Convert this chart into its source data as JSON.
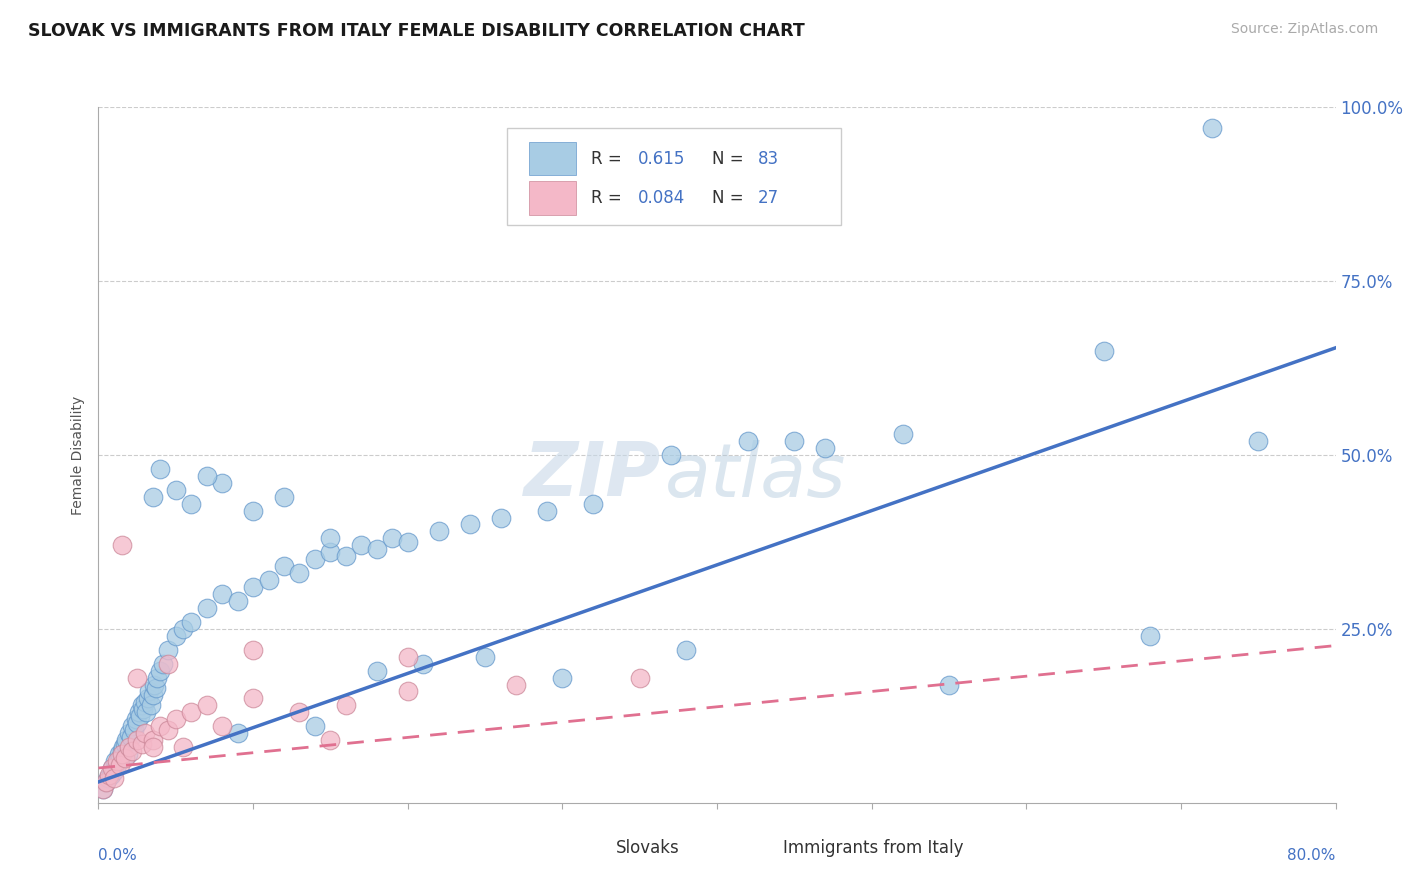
{
  "title": "SLOVAK VS IMMIGRANTS FROM ITALY FEMALE DISABILITY CORRELATION CHART",
  "source": "Source: ZipAtlas.com",
  "ylabel": "Female Disability",
  "xlim": [
    0.0,
    80.0
  ],
  "ylim": [
    0.0,
    100.0
  ],
  "yticks": [
    0.0,
    25.0,
    50.0,
    75.0,
    100.0
  ],
  "ytick_labels": [
    "",
    "25.0%",
    "50.0%",
    "75.0%",
    "100.0%"
  ],
  "blue_R": "0.615",
  "blue_N": "83",
  "pink_R": "0.084",
  "pink_N": "27",
  "blue_color": "#a8cce4",
  "pink_color": "#f4b8c8",
  "blue_line_color": "#4472c4",
  "pink_line_color": "#e07090",
  "blue_scatter_x": [
    0.3,
    0.5,
    0.6,
    0.8,
    0.9,
    1.0,
    1.1,
    1.2,
    1.3,
    1.4,
    1.5,
    1.6,
    1.7,
    1.8,
    1.9,
    2.0,
    2.1,
    2.2,
    2.3,
    2.4,
    2.5,
    2.6,
    2.7,
    2.8,
    2.9,
    3.0,
    3.1,
    3.2,
    3.3,
    3.4,
    3.5,
    3.6,
    3.7,
    3.8,
    4.0,
    4.2,
    4.5,
    5.0,
    5.5,
    6.0,
    7.0,
    8.0,
    9.0,
    10.0,
    11.0,
    12.0,
    13.0,
    14.0,
    15.0,
    16.0,
    17.0,
    18.0,
    19.0,
    20.0,
    22.0,
    24.0,
    26.0,
    29.0,
    32.0,
    37.0,
    42.0,
    47.0,
    52.0,
    65.0,
    72.0
  ],
  "blue_scatter_y": [
    2.0,
    3.0,
    3.5,
    4.0,
    5.0,
    4.5,
    6.0,
    5.5,
    7.0,
    6.5,
    7.5,
    8.0,
    8.5,
    9.0,
    7.0,
    10.0,
    9.5,
    11.0,
    10.5,
    12.0,
    11.5,
    13.0,
    12.5,
    14.0,
    13.5,
    14.5,
    13.0,
    15.0,
    16.0,
    14.0,
    15.5,
    17.0,
    16.5,
    18.0,
    19.0,
    20.0,
    22.0,
    24.0,
    25.0,
    26.0,
    28.0,
    30.0,
    29.0,
    31.0,
    32.0,
    34.0,
    33.0,
    35.0,
    36.0,
    35.5,
    37.0,
    36.5,
    38.0,
    37.5,
    39.0,
    40.0,
    41.0,
    42.0,
    43.0,
    50.0,
    52.0,
    51.0,
    53.0,
    65.0,
    97.0
  ],
  "blue_scatter_x2": [
    3.5,
    5.0,
    6.0,
    8.0,
    10.0,
    12.0,
    15.0,
    18.0,
    21.0,
    25.0,
    30.0,
    38.0,
    45.0,
    55.0,
    68.0,
    75.0,
    4.0,
    7.0,
    9.0,
    14.0
  ],
  "blue_scatter_y2": [
    44.0,
    45.0,
    43.0,
    46.0,
    42.0,
    44.0,
    38.0,
    19.0,
    20.0,
    21.0,
    18.0,
    22.0,
    52.0,
    17.0,
    24.0,
    52.0,
    48.0,
    47.0,
    10.0,
    11.0
  ],
  "pink_scatter_x": [
    0.3,
    0.5,
    0.7,
    0.9,
    1.0,
    1.2,
    1.4,
    1.5,
    1.7,
    2.0,
    2.2,
    2.5,
    2.8,
    3.0,
    3.5,
    4.0,
    4.5,
    5.0,
    6.0,
    7.0,
    8.0,
    10.0,
    13.0,
    16.0,
    20.0,
    27.0,
    35.0
  ],
  "pink_scatter_y": [
    2.0,
    3.0,
    4.0,
    5.0,
    3.5,
    6.0,
    5.5,
    7.0,
    6.5,
    8.0,
    7.5,
    9.0,
    8.5,
    10.0,
    9.0,
    11.0,
    10.5,
    12.0,
    13.0,
    14.0,
    11.0,
    15.0,
    13.0,
    14.0,
    16.0,
    17.0,
    18.0
  ],
  "pink_scatter_x2": [
    1.5,
    2.5,
    3.5,
    4.5,
    5.5,
    10.0,
    15.0,
    20.0
  ],
  "pink_scatter_y2": [
    37.0,
    18.0,
    8.0,
    20.0,
    8.0,
    22.0,
    9.0,
    21.0
  ],
  "watermark_zip": "ZIP",
  "watermark_atlas": "atlas",
  "background_color": "#ffffff",
  "grid_color": "#cccccc",
  "legend_label1": "R =  0.615   N = 83",
  "legend_label2": "R = 0.084   N = 27",
  "bottom_label1": "Slovaks",
  "bottom_label2": "Immigrants from Italy"
}
